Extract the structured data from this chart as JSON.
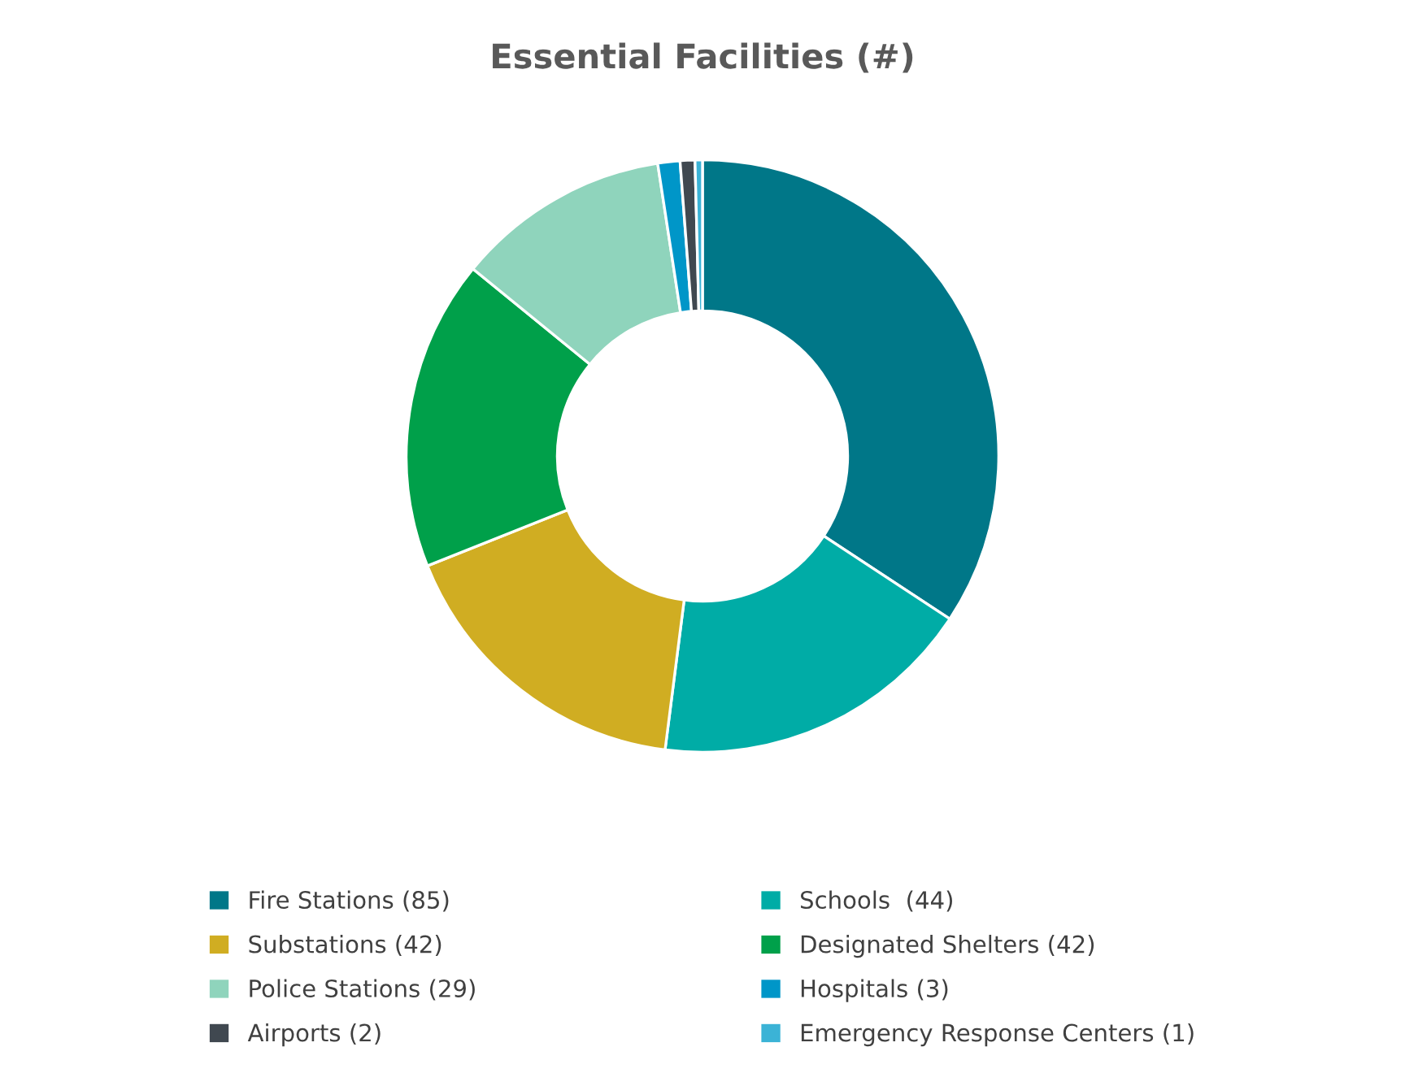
{
  "chart_data": {
    "type": "donut",
    "title": "Essential Facilities (#)",
    "categories": [
      "Fire Stations (85)",
      "Schools  (44)",
      "Substations (42)",
      "Designated Shelters (42)",
      "Police Stations (29)",
      "Hospitals (3)",
      "Airports (2)",
      "Emergency Response Centers (1)"
    ],
    "values": [
      85,
      44,
      42,
      42,
      29,
      3,
      2,
      1
    ],
    "colors": [
      "#007788",
      "#00aca6",
      "#d0ad22",
      "#00a04a",
      "#8fd4bc",
      "#0096c8",
      "#404850",
      "#3bb3d6"
    ],
    "legend": "bottom"
  }
}
